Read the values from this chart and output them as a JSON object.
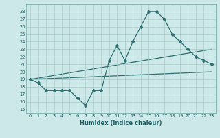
{
  "title": "",
  "xlabel": "Humidex (Indice chaleur)",
  "bg_color": "#cce8e8",
  "grid_color": "#aacccc",
  "line_color": "#2d7070",
  "xlim": [
    -0.5,
    23.5
  ],
  "ylim": [
    14.5,
    29.0
  ],
  "yticks": [
    15,
    16,
    17,
    18,
    19,
    20,
    21,
    22,
    23,
    24,
    25,
    26,
    27,
    28
  ],
  "xticks": [
    0,
    1,
    2,
    3,
    4,
    5,
    6,
    7,
    8,
    9,
    10,
    11,
    12,
    13,
    14,
    15,
    16,
    17,
    18,
    19,
    20,
    21,
    22,
    23
  ],
  "series1": {
    "x": [
      0,
      1,
      2,
      3,
      4,
      5,
      6,
      7,
      8,
      9,
      10,
      11,
      12,
      13,
      14,
      15,
      16,
      17,
      18,
      19,
      20,
      21,
      22,
      23
    ],
    "y": [
      19,
      18.5,
      17.5,
      17.5,
      17.5,
      17.5,
      16.5,
      15.5,
      17.5,
      17.5,
      21.5,
      23.5,
      21.5,
      24,
      26,
      28,
      28,
      27,
      25,
      24,
      23,
      22,
      21.5,
      21
    ]
  },
  "series2": {
    "x": [
      0,
      23
    ],
    "y": [
      19,
      23
    ]
  },
  "series3": {
    "x": [
      0,
      23
    ],
    "y": [
      19,
      20
    ]
  }
}
